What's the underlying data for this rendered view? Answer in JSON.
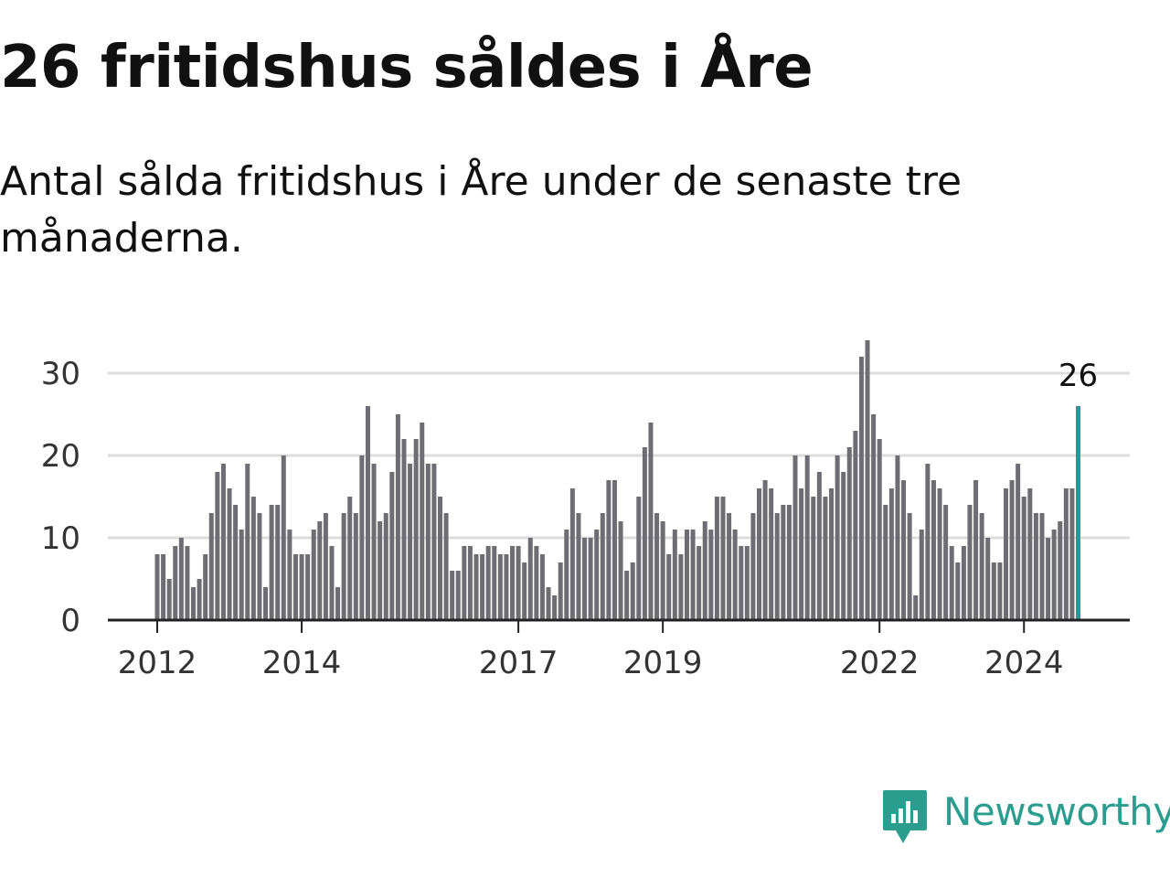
{
  "header": {
    "title": "26 fritidshus såldes i Åre",
    "subtitle": "Antal sålda fritidshus i Åre under de senaste tre månaderna."
  },
  "brand": {
    "name": "Newsworthy",
    "color": "#2a9d8f",
    "icon": "newsworthy-logo-icon"
  },
  "colors": {
    "bar": "#6e6d73",
    "highlight": "#14a197",
    "grid": "#dddddd",
    "axis": "#222222",
    "tick_text": "#333333"
  },
  "chart_data": {
    "type": "bar",
    "start": "2012-01",
    "xticks": [
      "2012",
      "2014",
      "2017",
      "2019",
      "2022",
      "2024"
    ],
    "yticks": [
      0,
      10,
      20,
      30
    ],
    "ylim": [
      0,
      34
    ],
    "grid": true,
    "highlight_label": "26",
    "values": [
      8,
      8,
      5,
      9,
      10,
      9,
      4,
      5,
      8,
      13,
      18,
      19,
      16,
      14,
      11,
      19,
      15,
      13,
      4,
      14,
      14,
      20,
      11,
      8,
      8,
      8,
      11,
      12,
      13,
      9,
      4,
      13,
      15,
      13,
      20,
      26,
      19,
      12,
      13,
      18,
      25,
      22,
      19,
      22,
      24,
      19,
      19,
      15,
      13,
      6,
      6,
      9,
      9,
      8,
      8,
      9,
      9,
      8,
      8,
      9,
      9,
      7,
      10,
      9,
      8,
      4,
      3,
      7,
      11,
      16,
      13,
      10,
      10,
      11,
      13,
      17,
      17,
      12,
      6,
      7,
      15,
      21,
      24,
      13,
      12,
      8,
      11,
      8,
      11,
      11,
      9,
      12,
      11,
      15,
      15,
      13,
      11,
      9,
      9,
      13,
      16,
      17,
      16,
      13,
      14,
      14,
      20,
      16,
      20,
      15,
      18,
      15,
      16,
      20,
      18,
      21,
      23,
      32,
      34,
      25,
      22,
      14,
      16,
      20,
      17,
      13,
      3,
      11,
      19,
      17,
      16,
      14,
      9,
      7,
      9,
      14,
      17,
      13,
      10,
      7,
      7,
      16,
      17,
      19,
      15,
      16,
      13,
      13,
      10,
      11,
      12,
      16,
      16,
      26
    ]
  }
}
